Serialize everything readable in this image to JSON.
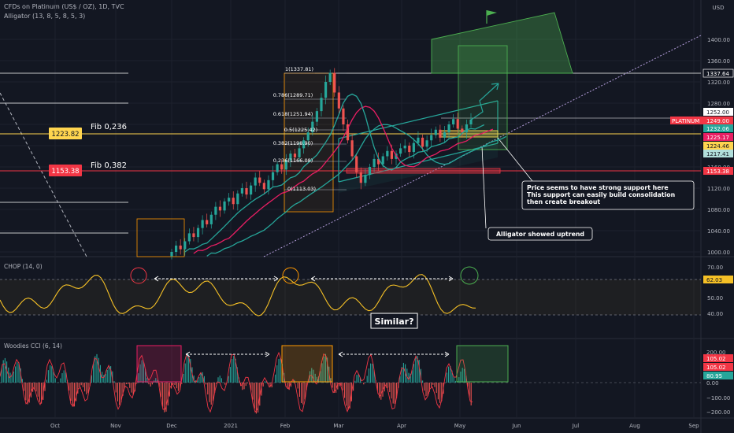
{
  "header": {
    "symbol_line": "CFDs on Platinum (US$ / OZ), 1D, TVC",
    "indicator_line": "Alligator (13, 8, 5, 8, 5, 3)",
    "currency": "USD"
  },
  "colors": {
    "background": "#131722",
    "grid": "#1e222d",
    "up_candle": "#26a69a",
    "down_candle": "#ef5350",
    "alligator_jaw": "#26a69a",
    "alligator_teeth": "#e91e63",
    "alligator_lips": "#f5f5f5",
    "fib": "#ffd54f",
    "support": "#f23645",
    "chop": "#f5c026",
    "cci_fill_up": "#26a69a",
    "cci_fill_down": "#ef5350"
  },
  "fib_labels": {
    "fib_0236": "Fib 0,236",
    "fib_0382": "Fib 0,382",
    "fib_1": "1(1337.81)",
    "fib_0786": "0.786(1289.71)",
    "fib_0618": "0.618(1251.94)",
    "fib_05": "0.5(1225.42)",
    "fib_0382_inner": "0.382(1198.90)",
    "fib_0236_inner": "0.236(1166.08)",
    "fib_0": "0(1113.03)"
  },
  "left_tags": {
    "tag_1223": "1223.82",
    "tag_1153": "1153.38"
  },
  "annotations": {
    "support_note": "Price seems to have strong support here\nThis support can easily build consolidation\nthen create breakout",
    "alligator_note": "Alligator showed uptrend",
    "similar_note": "Similar?"
  },
  "right_axis": {
    "ticks_main": [
      "1400.00",
      "1360.00",
      "1320.00",
      "1280.00",
      "1240.00",
      "1200.00",
      "1160.00",
      "1120.00",
      "1080.00",
      "1040.00",
      "1000.00"
    ],
    "price_tags": [
      {
        "text": "1337.64",
        "color": "#ffffff",
        "bg": "#131722"
      },
      {
        "text": "1252.00",
        "color": "#131722",
        "bg": "#ffffff"
      },
      {
        "text": "1249.00",
        "color": "#ffffff",
        "bg": "#f23645"
      },
      {
        "text": "1232.06",
        "color": "#ffffff",
        "bg": "#26a69a"
      },
      {
        "text": "1225.17",
        "color": "#ffffff",
        "bg": "#e91e63"
      },
      {
        "text": "1224.46",
        "color": "#131722",
        "bg": "#ffd54f"
      },
      {
        "text": "1217.41",
        "color": "#131722",
        "bg": "#b2dfdb"
      },
      {
        "text": "1153.38",
        "color": "#ffffff",
        "bg": "#f23645"
      }
    ],
    "symbol_tag": "PLATINUM",
    "chop_ticks": [
      "70.00",
      "50.00",
      "40.00"
    ],
    "chop_tag": "62.03",
    "cci_ticks": [
      "200.00",
      "100.00",
      "0.00",
      "−100.00",
      "−200.00"
    ],
    "cci_tags": [
      "105.02",
      "105.02",
      "80.95"
    ]
  },
  "chop_pane": {
    "title": "CHOP (14, 0)"
  },
  "cci_pane": {
    "title": "Woodies CCI (6, 14)"
  },
  "x_axis": {
    "labels": [
      "Oct",
      "Nov",
      "Dec",
      "2021",
      "Feb",
      "Mar",
      "Apr",
      "May",
      "Jun",
      "Jul",
      "Aug",
      "Sep"
    ]
  },
  "chart_data": {
    "type": "candlestick",
    "title": "CFDs on Platinum (US$ / OZ), 1D, TVC",
    "ylabel": "USD",
    "ylim": [
      990,
      1440
    ],
    "x_labels": [
      "Oct",
      "Nov",
      "Dec",
      "2021",
      "Feb",
      "Mar",
      "Apr",
      "May",
      "Jun",
      "Jul",
      "Aug",
      "Sep"
    ],
    "levels": [
      {
        "name": "Fib 0,236",
        "value": 1223.82
      },
      {
        "name": "Fib 0,382",
        "value": 1153.38
      },
      {
        "name": "1",
        "value": 1337.81
      },
      {
        "name": "0.786",
        "value": 1289.71
      },
      {
        "name": "0.618",
        "value": 1251.94
      },
      {
        "name": "0.5",
        "value": 1225.42
      },
      {
        "name": "0.382",
        "value": 1198.9
      },
      {
        "name": "0.236",
        "value": 1166.08
      },
      {
        "name": "0",
        "value": 1113.03
      }
    ],
    "series": [
      {
        "name": "close",
        "values": [
          1000,
          1012,
          1005,
          1020,
          1035,
          1028,
          1045,
          1060,
          1052,
          1070,
          1085,
          1078,
          1095,
          1102,
          1090,
          1110,
          1120,
          1108,
          1125,
          1140,
          1130,
          1118,
          1135,
          1150,
          1165,
          1155,
          1172,
          1185,
          1178,
          1195,
          1210,
          1225,
          1245,
          1265,
          1290,
          1320,
          1337,
          1300,
          1270,
          1240,
          1210,
          1180,
          1150,
          1130,
          1145,
          1160,
          1175,
          1165,
          1180,
          1190,
          1175,
          1185,
          1195,
          1200,
          1188,
          1205,
          1215,
          1198,
          1210,
          1220,
          1230,
          1215,
          1225,
          1240,
          1250,
          1232,
          1225,
          1240,
          1249
        ]
      }
    ],
    "indicators": {
      "chop": {
        "last": 62.03,
        "levels": [
          61.8,
          38.2
        ]
      },
      "woodies_cci": {
        "last": 105.02,
        "turbo": 80.95
      }
    }
  }
}
